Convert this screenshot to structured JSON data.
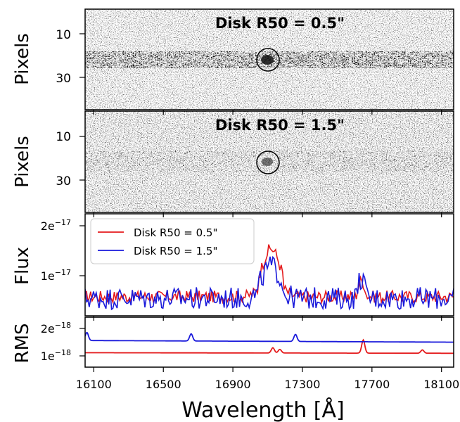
{
  "chart_data": [
    {
      "type": "heatmap",
      "panel": "image-1",
      "title": "Disk R50 = 0.5\"",
      "ylabel": "Pixels",
      "ytick_labels": [
        "10",
        "30"
      ],
      "yticks": [
        10,
        30
      ],
      "ylim": [
        42,
        0
      ],
      "trace_row": 22,
      "marked_wavelength": 17130,
      "colormap": "gray_r"
    },
    {
      "type": "heatmap",
      "panel": "image-2",
      "title": "Disk R50 = 1.5\"",
      "ylabel": "Pixels",
      "ytick_labels": [
        "10",
        "30"
      ],
      "yticks": [
        10,
        30
      ],
      "ylim": [
        42,
        0
      ],
      "trace_row": 22,
      "marked_wavelength": 17130,
      "colormap": "gray_r"
    },
    {
      "type": "line",
      "panel": "flux",
      "ylabel": "Flux",
      "ytick_labels": [
        "1e−17",
        "2e−17"
      ],
      "yticks": [
        1e-17,
        2e-17
      ],
      "ylim": [
        4e-18,
        2.15e-17
      ],
      "legend": "top-left",
      "series": [
        {
          "name": "Disk R50 = 0.5\"",
          "color": "#e41a1c",
          "baseline": 7.3e-18,
          "noise": 1.3e-18,
          "features": [
            {
              "x": 17120,
              "peak": 1.55e-17,
              "width": 55
            },
            {
              "x": 17640,
              "peak": 1e-17,
              "width": 20
            }
          ]
        },
        {
          "name": "Disk R50 = 1.5\"",
          "color": "#1a1adb",
          "baseline": 7e-18,
          "noise": 2.4e-18,
          "features": [
            {
              "x": 17120,
              "peak": 1.25e-17,
              "width": 55
            },
            {
              "x": 17640,
              "peak": 1.05e-17,
              "width": 20
            }
          ]
        }
      ]
    },
    {
      "type": "line",
      "panel": "rms",
      "ylabel": "RMS",
      "ytick_labels": [
        "1e−18",
        "2e−18"
      ],
      "yticks": [
        1e-18,
        2e-18
      ],
      "ylim": [
        6e-19,
        2.4e-18
      ],
      "xlabel": "Wavelength [Å]",
      "xticks": [
        16100,
        16500,
        16900,
        17300,
        17700,
        18100
      ],
      "xtick_labels": [
        "16100",
        "16500",
        "16900",
        "17300",
        "17700",
        "18100"
      ],
      "xlim": [
        16050,
        18170
      ],
      "series": [
        {
          "name": "Disk R50 = 0.5\"",
          "color": "#e41a1c",
          "start": 1.12e-18,
          "end": 1.1e-18,
          "peaks": [
            {
              "x": 17130,
              "y": 1.3e-18
            },
            {
              "x": 17170,
              "y": 1.24e-18
            },
            {
              "x": 17650,
              "y": 1.58e-18
            },
            {
              "x": 17990,
              "y": 1.22e-18
            }
          ]
        },
        {
          "name": "Disk R50 = 1.5\"",
          "color": "#1a1adb",
          "start": 1.56e-18,
          "end": 1.5e-18,
          "peaks": [
            {
              "x": 16060,
              "y": 1.85e-18
            },
            {
              "x": 16660,
              "y": 1.8e-18
            },
            {
              "x": 17260,
              "y": 1.78e-18
            }
          ]
        }
      ]
    }
  ]
}
